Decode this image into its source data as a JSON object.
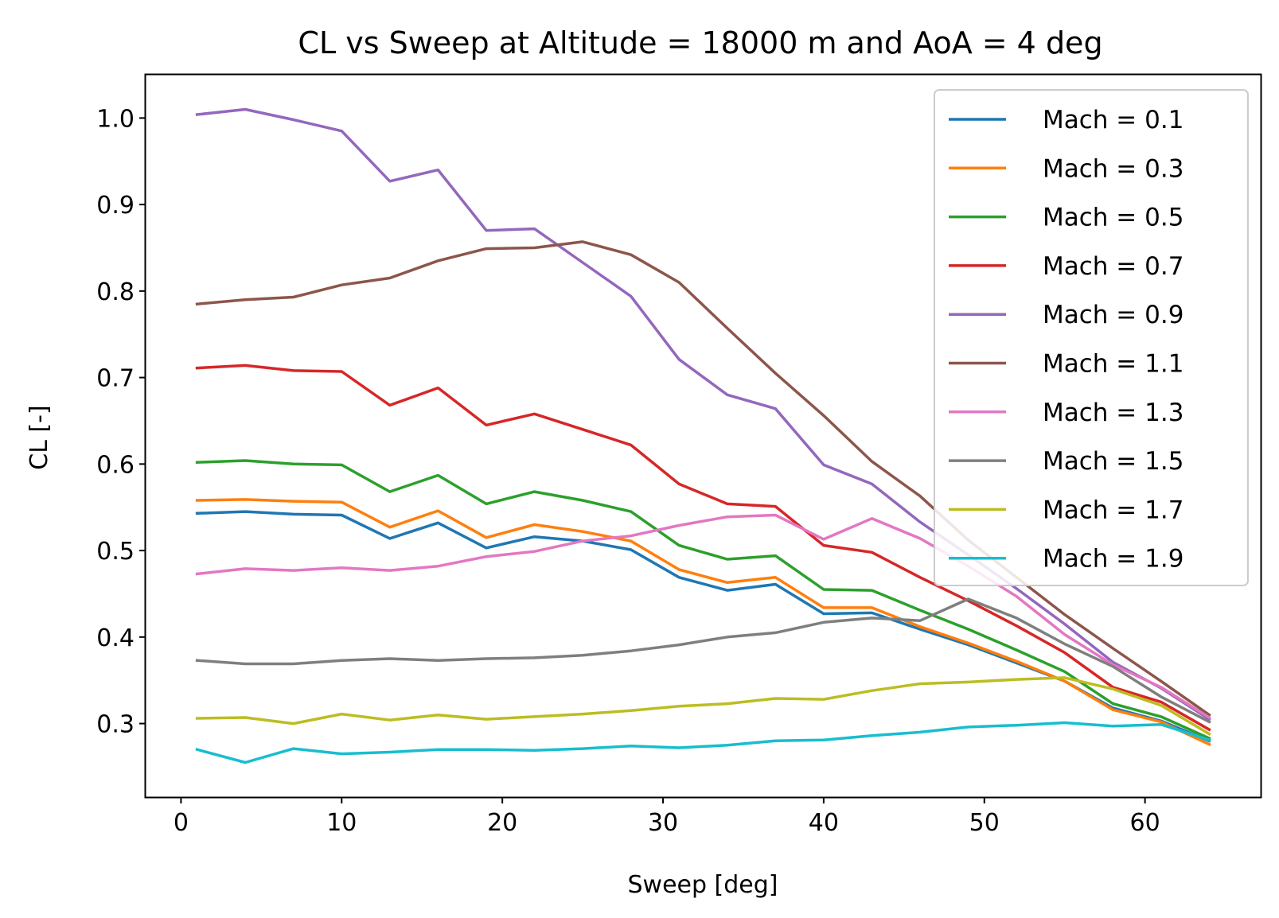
{
  "chart_data": {
    "type": "line",
    "title": "CL vs Sweep at Altitude = 18000 m and AoA = 4 deg",
    "xlabel": "Sweep [deg]",
    "ylabel": "CL [-]",
    "xlim": [
      -2.2,
      67.2
    ],
    "ylim": [
      0.215,
      1.05
    ],
    "xticks": [
      0,
      10,
      20,
      30,
      40,
      50,
      60
    ],
    "xtick_labels": [
      "0",
      "10",
      "20",
      "30",
      "40",
      "50",
      "60"
    ],
    "yticks": [
      0.3,
      0.4,
      0.5,
      0.6,
      0.7,
      0.8,
      0.9,
      1.0
    ],
    "ytick_labels": [
      "0.3",
      "0.4",
      "0.5",
      "0.6",
      "0.7",
      "0.8",
      "0.9",
      "1.0"
    ],
    "grid": false,
    "legend_position": "top-right",
    "x": [
      1,
      4,
      7,
      10,
      13,
      16,
      19,
      22,
      25,
      28,
      31,
      34,
      37,
      40,
      43,
      46,
      49,
      52,
      55,
      58,
      61,
      64
    ],
    "series": [
      {
        "name": "Mach = 0.1",
        "color": "#1f77b4",
        "values": [
          0.543,
          0.545,
          0.542,
          0.541,
          0.514,
          0.532,
          0.503,
          0.516,
          0.511,
          0.501,
          0.469,
          0.454,
          0.461,
          0.427,
          0.428,
          0.409,
          0.391,
          0.37,
          0.349,
          0.318,
          0.303,
          0.28
        ]
      },
      {
        "name": "Mach = 0.3",
        "color": "#ff7f0e",
        "values": [
          0.558,
          0.559,
          0.557,
          0.556,
          0.527,
          0.546,
          0.515,
          0.53,
          0.522,
          0.511,
          0.478,
          0.463,
          0.469,
          0.434,
          0.434,
          0.412,
          0.393,
          0.372,
          0.349,
          0.316,
          0.302,
          0.276
        ]
      },
      {
        "name": "Mach = 0.5",
        "color": "#2ca02c",
        "values": [
          0.602,
          0.604,
          0.6,
          0.599,
          0.568,
          0.587,
          0.554,
          0.568,
          0.558,
          0.545,
          0.506,
          0.49,
          0.494,
          0.455,
          0.454,
          0.431,
          0.409,
          0.385,
          0.36,
          0.323,
          0.308,
          0.283
        ]
      },
      {
        "name": "Mach = 0.7",
        "color": "#d62728",
        "values": [
          0.711,
          0.714,
          0.708,
          0.707,
          0.668,
          0.688,
          0.645,
          0.658,
          0.64,
          0.622,
          0.577,
          0.554,
          0.551,
          0.506,
          0.498,
          0.469,
          0.442,
          0.413,
          0.382,
          0.342,
          0.325,
          0.293
        ]
      },
      {
        "name": "Mach = 0.9",
        "color": "#9467bd",
        "values": [
          1.004,
          1.01,
          0.998,
          0.985,
          0.927,
          0.94,
          0.87,
          0.872,
          0.833,
          0.794,
          0.721,
          0.68,
          0.664,
          0.599,
          0.577,
          0.533,
          0.495,
          0.456,
          0.415,
          0.371,
          0.341,
          0.305
        ]
      },
      {
        "name": "Mach = 1.1",
        "color": "#8c564b",
        "values": [
          0.785,
          0.79,
          0.793,
          0.807,
          0.815,
          0.835,
          0.849,
          0.85,
          0.857,
          0.842,
          0.81,
          0.757,
          0.705,
          0.656,
          0.603,
          0.563,
          0.512,
          0.469,
          0.426,
          0.387,
          0.349,
          0.31
        ]
      },
      {
        "name": "Mach = 1.3",
        "color": "#e377c2",
        "values": [
          0.473,
          0.479,
          0.477,
          0.48,
          0.477,
          0.482,
          0.493,
          0.499,
          0.511,
          0.517,
          0.529,
          0.539,
          0.541,
          0.513,
          0.537,
          0.514,
          0.482,
          0.447,
          0.403,
          0.368,
          0.342,
          0.307
        ]
      },
      {
        "name": "Mach = 1.5",
        "color": "#7f7f7f",
        "values": [
          0.373,
          0.369,
          0.369,
          0.373,
          0.375,
          0.373,
          0.375,
          0.376,
          0.379,
          0.384,
          0.391,
          0.4,
          0.405,
          0.417,
          0.422,
          0.419,
          0.444,
          0.422,
          0.392,
          0.366,
          0.331,
          0.302
        ]
      },
      {
        "name": "Mach = 1.7",
        "color": "#bcbd22",
        "values": [
          0.306,
          0.307,
          0.3,
          0.311,
          0.304,
          0.31,
          0.305,
          0.308,
          0.311,
          0.315,
          0.32,
          0.323,
          0.329,
          0.328,
          0.338,
          0.346,
          0.348,
          0.351,
          0.353,
          0.34,
          0.321,
          0.288
        ]
      },
      {
        "name": "Mach = 1.9",
        "color": "#17becf",
        "values": [
          0.27,
          0.255,
          0.271,
          0.265,
          0.267,
          0.27,
          0.27,
          0.269,
          0.271,
          0.274,
          0.272,
          0.275,
          0.28,
          0.281,
          0.286,
          0.29,
          0.296,
          0.298,
          0.301,
          0.297,
          0.299,
          0.281
        ]
      }
    ]
  }
}
